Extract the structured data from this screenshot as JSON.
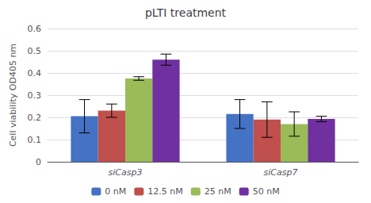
{
  "chart_data": {
    "type": "bar",
    "title": "pLTI treatment",
    "ylabel": "Cell viability OD405 nm",
    "categories": [
      "siCasp3",
      "siCasp7"
    ],
    "series": [
      {
        "name": "0 nM",
        "color": "#4472c4",
        "values": [
          0.205,
          0.215
        ],
        "errors": [
          0.075,
          0.065
        ]
      },
      {
        "name": "12.5 nM",
        "color": "#c0504d",
        "values": [
          0.23,
          0.19
        ],
        "errors": [
          0.03,
          0.08
        ]
      },
      {
        "name": "25 nM",
        "color": "#9bbb59",
        "values": [
          0.375,
          0.17
        ],
        "errors": [
          0.008,
          0.055
        ]
      },
      {
        "name": "50 nM",
        "color": "#7030a0",
        "values": [
          0.46,
          0.193
        ],
        "errors": [
          0.025,
          0.012
        ]
      }
    ],
    "ylim": [
      0,
      0.6
    ],
    "yticks": [
      0,
      0.1,
      0.2,
      0.3,
      0.4,
      0.5,
      0.6
    ],
    "grid": true,
    "legend": "bottom"
  }
}
